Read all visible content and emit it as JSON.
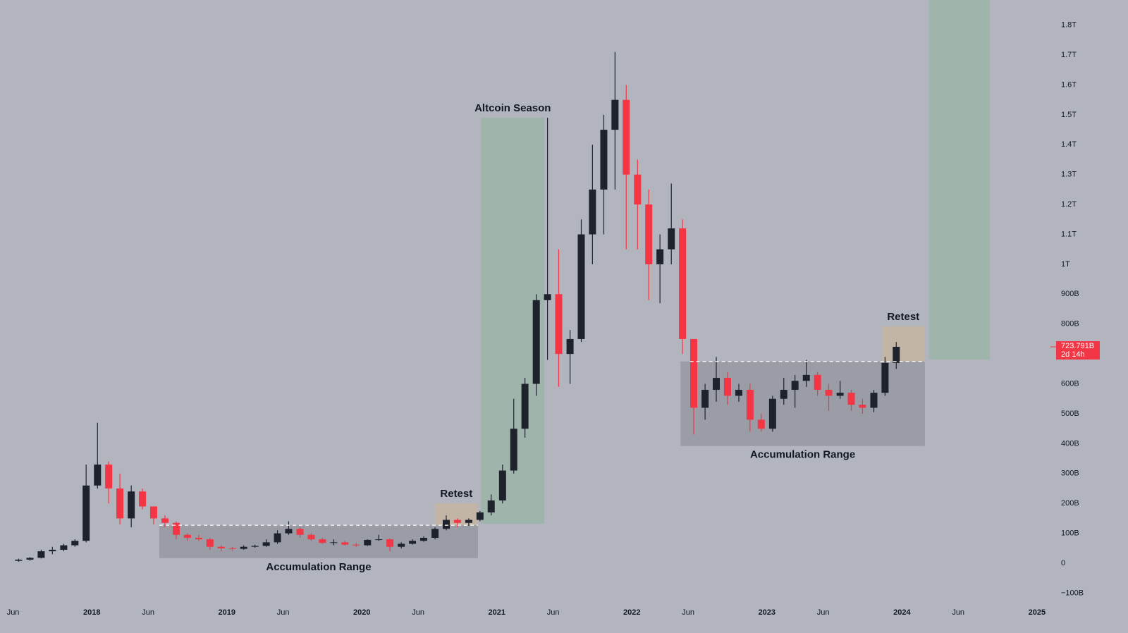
{
  "chart_data": {
    "type": "candlestick",
    "x": [
      2017.458,
      2017.542,
      2017.625,
      2017.708,
      2017.792,
      2017.875,
      2017.958,
      2018.042,
      2018.125,
      2018.208,
      2018.292,
      2018.375,
      2018.458,
      2018.542,
      2018.625,
      2018.708,
      2018.792,
      2018.875,
      2018.958,
      2019.042,
      2019.125,
      2019.208,
      2019.292,
      2019.375,
      2019.458,
      2019.542,
      2019.625,
      2019.708,
      2019.792,
      2019.875,
      2019.958,
      2020.042,
      2020.125,
      2020.208,
      2020.292,
      2020.375,
      2020.458,
      2020.542,
      2020.625,
      2020.708,
      2020.792,
      2020.875,
      2020.958,
      2021.042,
      2021.125,
      2021.208,
      2021.292,
      2021.375,
      2021.458,
      2021.542,
      2021.625,
      2021.708,
      2021.792,
      2021.875,
      2021.958,
      2022.042,
      2022.125,
      2022.208,
      2022.292,
      2022.375,
      2022.458,
      2022.542,
      2022.625,
      2022.708,
      2022.792,
      2022.875,
      2022.958,
      2023.042,
      2023.125,
      2023.208,
      2023.292,
      2023.375,
      2023.458,
      2023.542,
      2023.625,
      2023.708,
      2023.792,
      2023.875,
      2023.958
    ],
    "open": [
      8,
      12,
      18,
      40,
      45,
      60,
      75,
      260,
      330,
      250,
      150,
      240,
      190,
      150,
      135,
      95,
      85,
      80,
      55,
      50,
      48,
      55,
      58,
      70,
      100,
      115,
      95,
      80,
      68,
      70,
      62,
      60,
      78,
      80,
      55,
      65,
      75,
      85,
      115,
      145,
      135,
      145,
      170,
      210,
      310,
      450,
      600,
      880,
      900,
      700,
      750,
      1100,
      1250,
      1450,
      1550,
      1300,
      1200,
      1000,
      1050,
      1120,
      750,
      520,
      580,
      620,
      560,
      580,
      480,
      450,
      550,
      580,
      610,
      630,
      580,
      560,
      570,
      530,
      520,
      570,
      670
    ],
    "high": [
      15,
      20,
      45,
      55,
      65,
      80,
      330,
      470,
      340,
      300,
      260,
      250,
      190,
      160,
      140,
      100,
      95,
      85,
      60,
      55,
      60,
      62,
      80,
      110,
      140,
      120,
      100,
      85,
      80,
      75,
      68,
      80,
      95,
      82,
      70,
      80,
      90,
      120,
      160,
      150,
      150,
      175,
      230,
      330,
      550,
      620,
      900,
      1490,
      1050,
      780,
      1150,
      1400,
      1500,
      1710,
      1600,
      1350,
      1250,
      1100,
      1270,
      1150,
      750,
      600,
      690,
      640,
      600,
      600,
      500,
      560,
      620,
      630,
      680,
      640,
      600,
      610,
      580,
      550,
      580,
      690,
      740
    ],
    "low": [
      5,
      8,
      16,
      30,
      40,
      55,
      70,
      250,
      200,
      130,
      120,
      180,
      130,
      120,
      80,
      75,
      75,
      45,
      40,
      42,
      45,
      52,
      55,
      65,
      95,
      85,
      75,
      65,
      60,
      60,
      55,
      58,
      75,
      40,
      50,
      62,
      72,
      80,
      110,
      120,
      125,
      140,
      160,
      200,
      300,
      420,
      560,
      680,
      590,
      600,
      740,
      1000,
      1100,
      1250,
      1050,
      1050,
      880,
      870,
      1000,
      700,
      430,
      480,
      540,
      530,
      540,
      440,
      440,
      440,
      530,
      520,
      590,
      560,
      510,
      550,
      510,
      500,
      505,
      560,
      650
    ],
    "close": [
      12,
      18,
      40,
      45,
      60,
      75,
      260,
      330,
      250,
      150,
      240,
      190,
      150,
      135,
      95,
      85,
      80,
      55,
      50,
      48,
      55,
      58,
      70,
      100,
      115,
      95,
      80,
      68,
      70,
      62,
      60,
      78,
      80,
      55,
      65,
      75,
      85,
      115,
      145,
      135,
      145,
      170,
      210,
      310,
      450,
      600,
      880,
      900,
      700,
      750,
      1100,
      1250,
      1450,
      1550,
      1300,
      1200,
      1000,
      1050,
      1120,
      750,
      520,
      580,
      620,
      560,
      580,
      480,
      450,
      550,
      580,
      610,
      630,
      580,
      560,
      570,
      530,
      520,
      570,
      670,
      724
    ],
    "up_color": "#1e222d",
    "down_color": "#f23645",
    "xlim": [
      2017.32,
      2025.1
    ],
    "ylim": [
      -132,
      1884
    ],
    "xticks": [
      {
        "value": 2017.417,
        "label": "Jun"
      },
      {
        "value": 2018,
        "label": "2018"
      },
      {
        "value": 2018.417,
        "label": "Jun"
      },
      {
        "value": 2019,
        "label": "2019"
      },
      {
        "value": 2019.417,
        "label": "Jun"
      },
      {
        "value": 2020,
        "label": "2020"
      },
      {
        "value": 2020.417,
        "label": "Jun"
      },
      {
        "value": 2021,
        "label": "2021"
      },
      {
        "value": 2021.417,
        "label": "Jun"
      },
      {
        "value": 2022,
        "label": "2022"
      },
      {
        "value": 2022.417,
        "label": "Jun"
      },
      {
        "value": 2023,
        "label": "2023"
      },
      {
        "value": 2023.417,
        "label": "Jun"
      },
      {
        "value": 2024,
        "label": "2024"
      },
      {
        "value": 2024.417,
        "label": "Jun"
      },
      {
        "value": 2025,
        "label": "2025"
      }
    ],
    "yticks": [
      {
        "value": -100,
        "label": "−100B"
      },
      0,
      {
        "value": 100,
        "label": "100B"
      },
      {
        "value": 200,
        "label": "200B"
      },
      {
        "value": 300,
        "label": "300B"
      },
      {
        "value": 400,
        "label": "400B"
      },
      {
        "value": 500,
        "label": "500B"
      },
      {
        "value": 600,
        "label": "600B"
      },
      {
        "value": 700,
        "label": "700B"
      },
      {
        "value": 800,
        "label": "800B"
      },
      {
        "value": 900,
        "label": "900B"
      },
      {
        "value": 1000,
        "label": "1T"
      },
      {
        "value": 1100,
        "label": "1.1T"
      },
      {
        "value": 1200,
        "label": "1.2T"
      },
      {
        "value": 1300,
        "label": "1.3T"
      },
      {
        "value": 1400,
        "label": "1.4T"
      },
      {
        "value": 1500,
        "label": "1.5T"
      },
      {
        "value": 1600,
        "label": "1.6T"
      },
      {
        "value": 1700,
        "label": "1.7T"
      },
      {
        "value": 1800,
        "label": "1.8T"
      }
    ],
    "grid": false,
    "zones": [
      {
        "label": "Accumulation Range",
        "label_side": "below",
        "x": [
          2018.5,
          2020.86
        ],
        "y": [
          17,
          127
        ],
        "color": "#9a9ca6"
      },
      {
        "label": "Retest",
        "label_side": "above",
        "x": [
          2020.54,
          2020.86
        ],
        "y": [
          127,
          200
        ],
        "color": "#c3b5a6"
      },
      {
        "label": "Altcoin Season",
        "label_side": "above",
        "x": [
          2020.883,
          2021.352
        ],
        "y": [
          132,
          1490
        ],
        "color": "#9fb4aa"
      },
      {
        "label": "Accumulation Range",
        "label_side": "below",
        "x": [
          2022.36,
          2024.17
        ],
        "y": [
          392,
          675
        ],
        "color": "#9a9ca6"
      },
      {
        "label": "Retest",
        "label_side": "above",
        "x": [
          2023.85,
          2024.17
        ],
        "y": [
          675,
          792
        ],
        "color": "#c3b5a6"
      },
      {
        "x": [
          2024.2,
          2024.65
        ],
        "y": [
          682,
          1884
        ],
        "color": "#9fb4aa"
      }
    ],
    "levels": [
      {
        "value": 127,
        "x": [
          2018.5,
          2020.86
        ]
      },
      {
        "value": 675,
        "x": [
          2022.43,
          2024.17
        ]
      }
    ],
    "last_price": {
      "value": 723.791,
      "label": "723.791B"
    },
    "countdown": "2d 14h"
  }
}
